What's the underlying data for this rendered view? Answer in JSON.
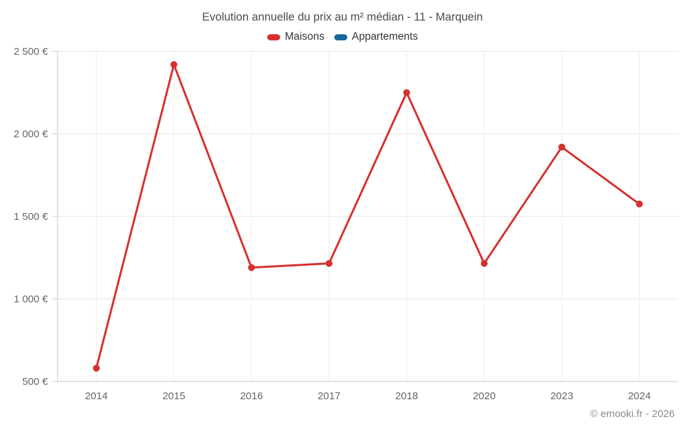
{
  "title": "Evolution annuelle du prix au m² médian - 11 - Marquein",
  "legend": [
    {
      "label": "Maisons",
      "color": "#d5312f"
    },
    {
      "label": "Appartements",
      "color": "#16689b"
    }
  ],
  "credits": "© emooki.fr - 2026",
  "chart_data": {
    "type": "line",
    "title": "Evolution annuelle du prix au m² médian - 11 - Marquein",
    "categories": [
      "2014",
      "2015",
      "2016",
      "2017",
      "2018",
      "2020",
      "2023",
      "2024"
    ],
    "series": [
      {
        "name": "Maisons",
        "color": "#d5312f",
        "values": [
          580,
          2420,
          1190,
          1215,
          2250,
          1215,
          1920,
          1575
        ]
      },
      {
        "name": "Appartements",
        "color": "#16689b",
        "values": []
      }
    ],
    "xlabel": "",
    "ylabel": "",
    "ylim": [
      500,
      2500
    ],
    "yticks": [
      500,
      1000,
      1500,
      2000,
      2500
    ],
    "ytick_labels": [
      "500 €",
      "1 000 €",
      "1 500 €",
      "2 000 €",
      "2 500 €"
    ],
    "grid": true,
    "legend_position": "top",
    "colors": {
      "grid_horizontal": "#e6e6e6",
      "grid_vertical": "#ececec",
      "axis": "#c9c9c9",
      "tick_label": "#666666"
    }
  }
}
